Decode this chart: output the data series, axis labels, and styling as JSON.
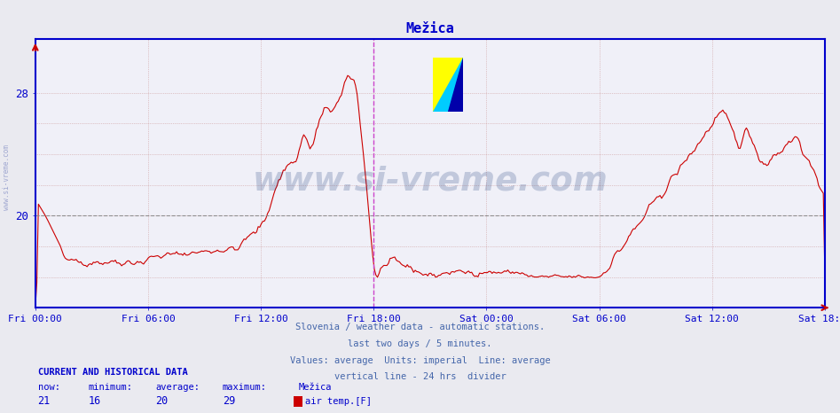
{
  "title": "Mežica",
  "title_color": "#0000cc",
  "bg_color": "#eaeaf0",
  "plot_bg_color": "#f0f0f8",
  "line_color": "#cc0000",
  "avg_line_color": "#cc0000",
  "avg_line_style": "--",
  "avg_value": 20,
  "grid_color_v": "#cc8888",
  "grid_color_h": "#aaaaaa",
  "axis_color": "#0000cc",
  "tick_label_color": "#0000cc",
  "ylim_min": 14,
  "ylim_max": 30,
  "yticks": [
    20,
    28
  ],
  "subtitle_lines": [
    "Slovenia / weather data - automatic stations.",
    "last two days / 5 minutes.",
    "Values: average  Units: imperial  Line: average",
    "vertical line - 24 hrs  divider"
  ],
  "subtitle_color": "#4466aa",
  "footer_title": "CURRENT AND HISTORICAL DATA",
  "footer_title_color": "#0000cc",
  "footer_label_row": [
    "now:",
    "minimum:",
    "average:",
    "maximum:",
    "Mežica"
  ],
  "footer_value_row": [
    "21",
    "16",
    "20",
    "29"
  ],
  "footer_color": "#0000cc",
  "legend_label": "air temp.[F]",
  "watermark_text": "www.si-vreme.com",
  "watermark_color": "#1a3a7a",
  "watermark_alpha": 0.22,
  "xtick_labels": [
    "Fri 00:00",
    "Fri 06:00",
    "Fri 12:00",
    "Fri 18:00",
    "Sat 00:00",
    "Sat 06:00",
    "Sat 12:00",
    "Sat 18:00"
  ],
  "vertical_line_color": "#cc44cc",
  "vline_style": "--",
  "total_hours": 42,
  "divider_hour": 18
}
